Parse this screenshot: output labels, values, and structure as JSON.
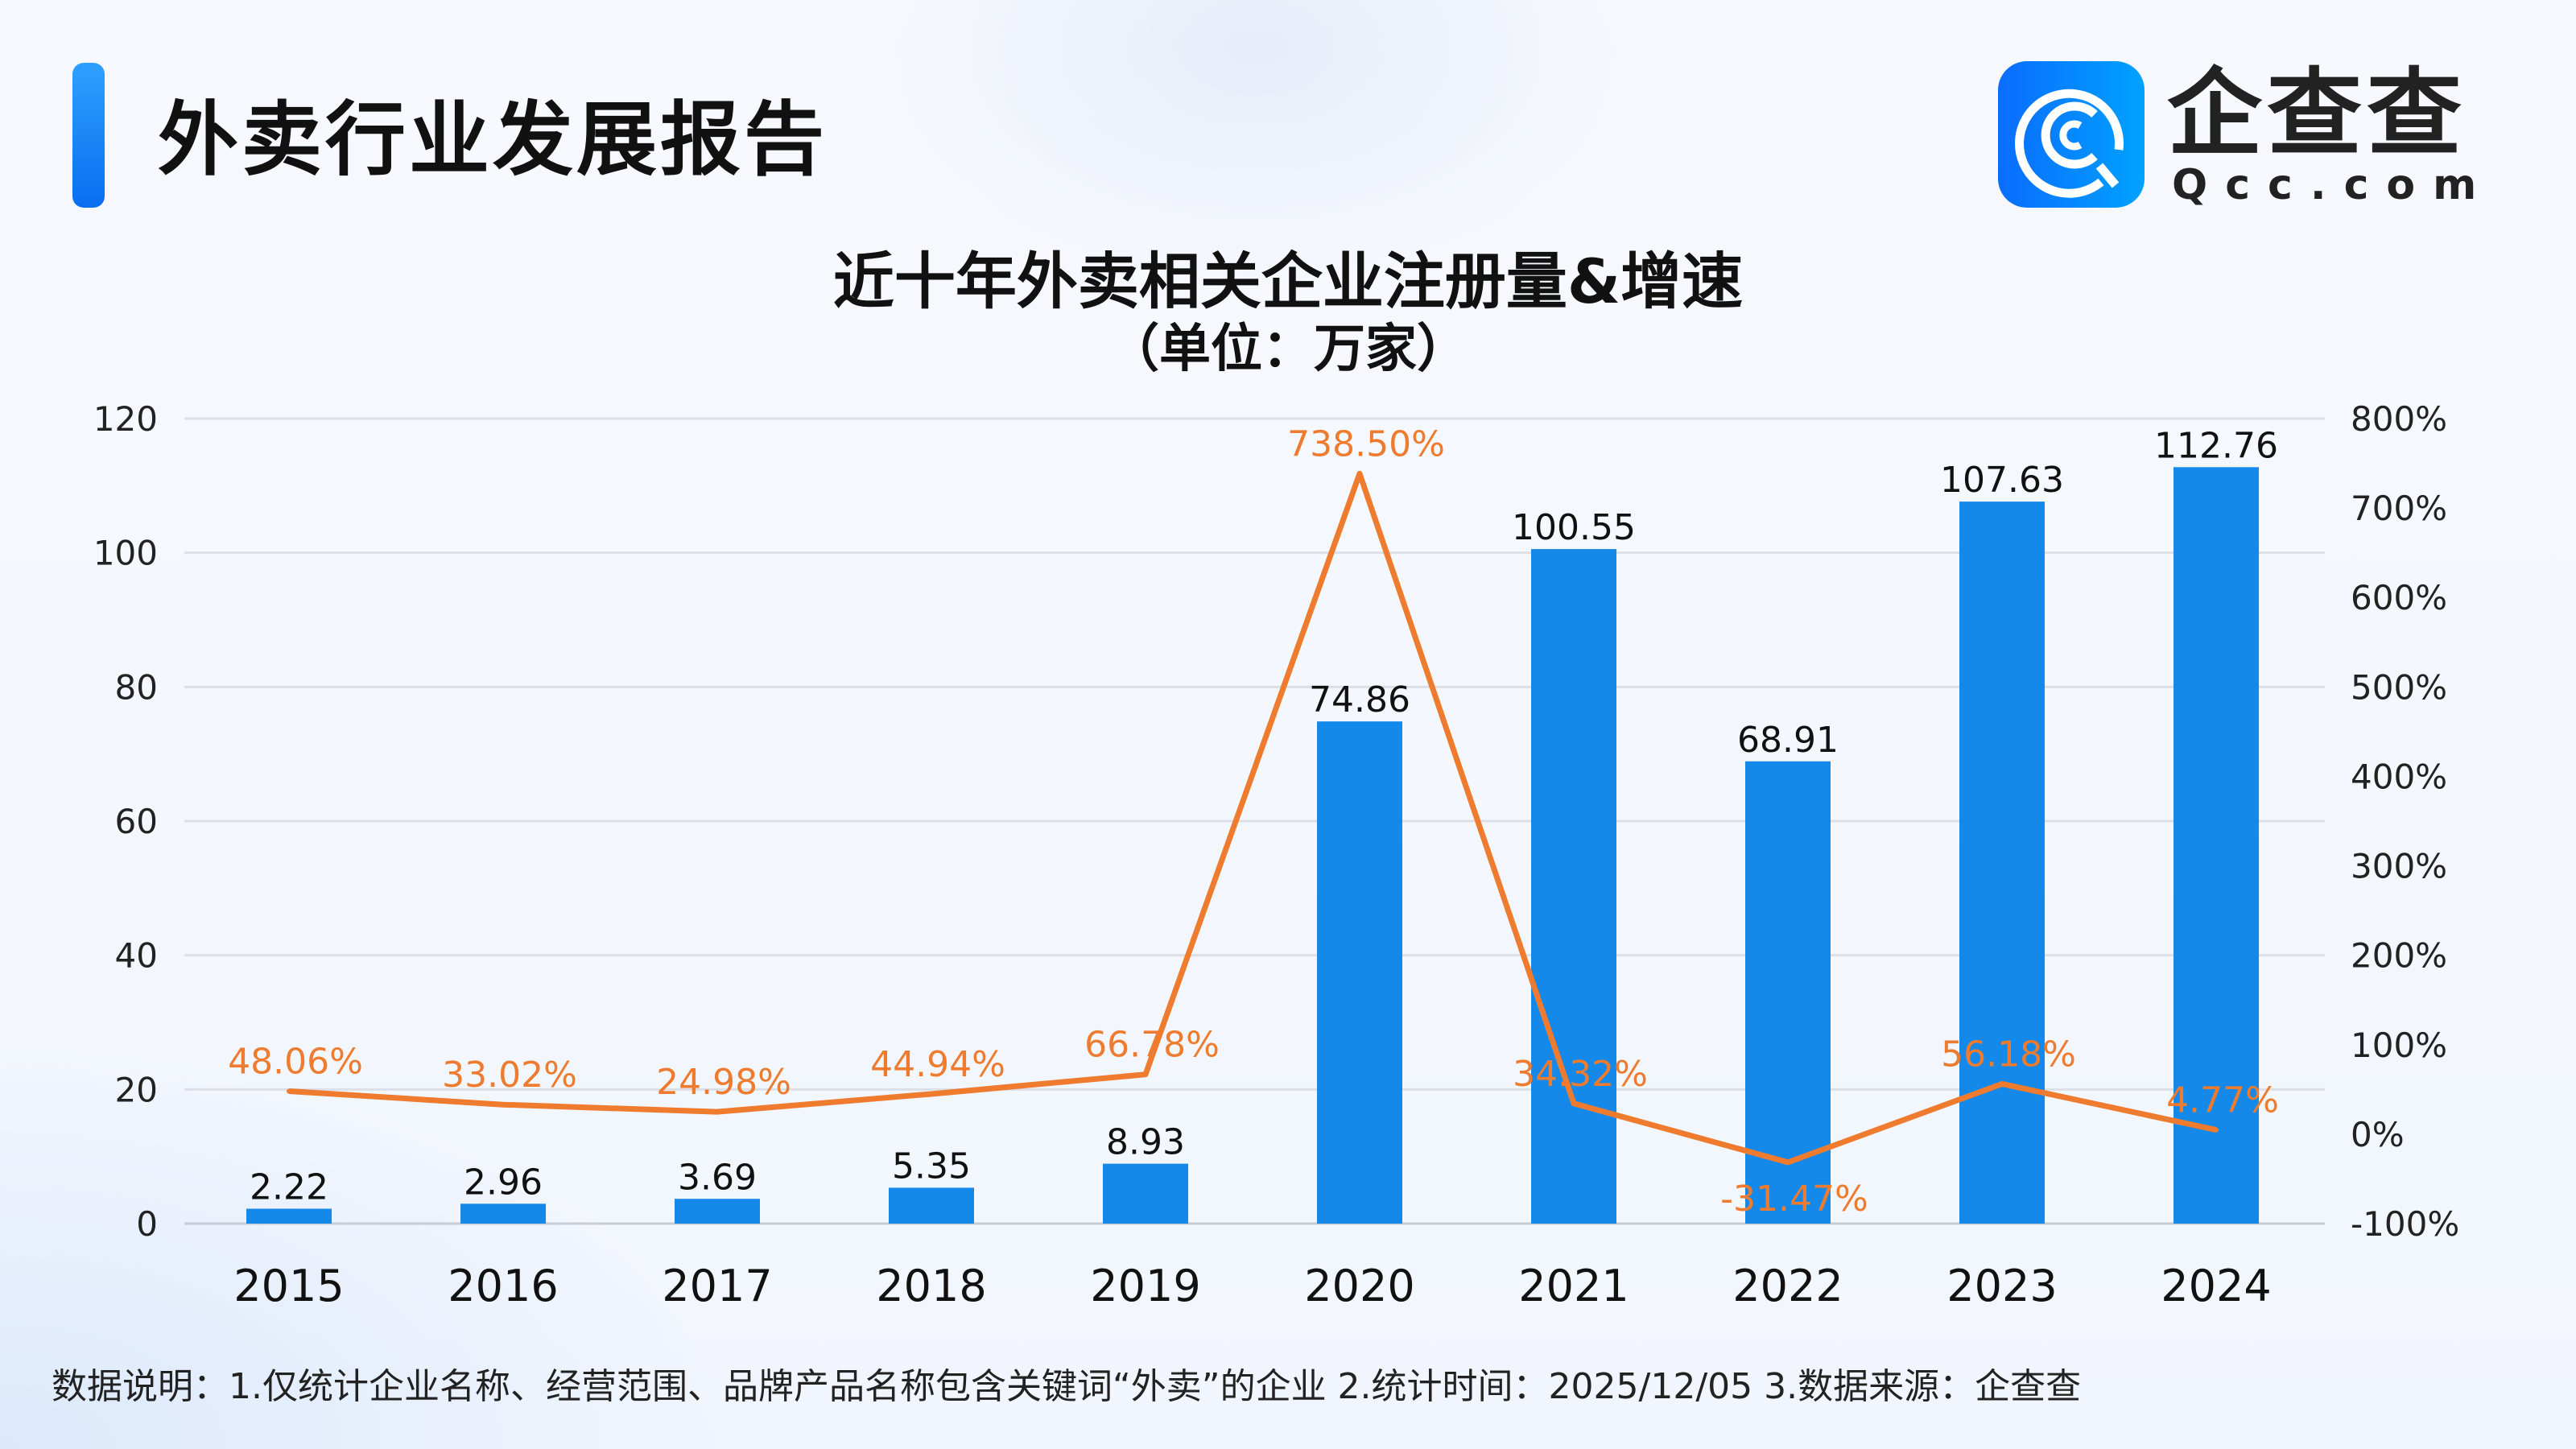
{
  "header": {
    "title": "外卖行业发展报告"
  },
  "logo": {
    "name_cn": "企查查",
    "name_en": "Qcc.com"
  },
  "footnote": "数据说明：1.仅统计企业名称、经营范围、品牌产品名称包含关键词“外卖”的企业  2.统计时间：2025/12/05   3.数据来源：企查查",
  "colors": {
    "bar": "#1589EA",
    "line": "#EE7B2E",
    "accent": "#1A86F5"
  },
  "chart_data": {
    "type": "bar+line",
    "title": "近十年外卖相关企业注册量&增速",
    "subtitle": "（单位：万家）",
    "categories": [
      "2015",
      "2016",
      "2017",
      "2018",
      "2019",
      "2020",
      "2021",
      "2022",
      "2023",
      "2024"
    ],
    "series": [
      {
        "name": "注册量",
        "type": "bar",
        "axis": "left",
        "values": [
          2.22,
          2.96,
          3.69,
          5.35,
          8.93,
          74.86,
          100.55,
          68.91,
          107.63,
          112.76
        ],
        "labels": [
          "2.22",
          "2.96",
          "3.69",
          "5.35",
          "8.93",
          "74.86",
          "100.55",
          "68.91",
          "107.63",
          "112.76"
        ]
      },
      {
        "name": "增速",
        "type": "line",
        "axis": "right",
        "values": [
          48.06,
          33.02,
          24.98,
          44.94,
          66.78,
          738.5,
          34.32,
          -31.47,
          56.18,
          4.77
        ],
        "labels": [
          "48.06%",
          "33.02%",
          "24.98%",
          "44.94%",
          "66.78%",
          "738.50%",
          "34.32%",
          "-31.47%",
          "56.18%",
          "4.77%"
        ]
      }
    ],
    "y_left": {
      "ylim": [
        0,
        120
      ],
      "ticks": [
        "0",
        "20",
        "40",
        "60",
        "80",
        "100",
        "120"
      ]
    },
    "y_right": {
      "ylim": [
        -100,
        800
      ],
      "ticks": [
        "-100%",
        "0%",
        "100%",
        "200%",
        "300%",
        "400%",
        "500%",
        "600%",
        "700%",
        "800%"
      ]
    },
    "grid": true,
    "legend": "none"
  }
}
